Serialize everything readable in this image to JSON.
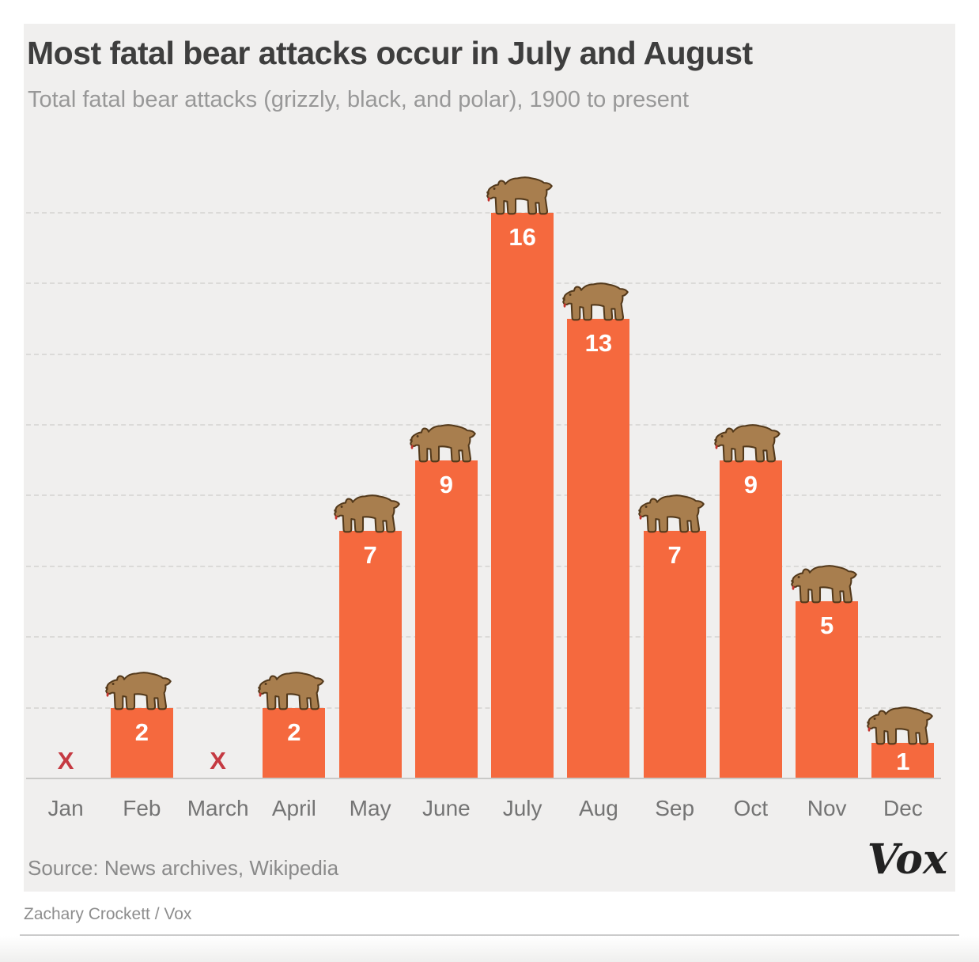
{
  "page": {
    "credit": "Zachary Crockett / Vox",
    "source": "Source: News archives, Wikipedia",
    "logo_text": "Vox"
  },
  "chart_data": {
    "type": "bar",
    "title": "Most fatal bear attacks occur in July and August",
    "subtitle": "Total fatal bear attacks (grizzly, black, and polar), 1900 to present",
    "categories": [
      "Jan",
      "Feb",
      "March",
      "April",
      "May",
      "June",
      "July",
      "Aug",
      "Sep",
      "Oct",
      "Nov",
      "Dec"
    ],
    "values": [
      0,
      2,
      0,
      2,
      7,
      9,
      16,
      13,
      7,
      9,
      5,
      1
    ],
    "zero_display": "X",
    "data_labels": "inside-top-white",
    "bar_icon": "bear-icon",
    "ylim": [
      0,
      17
    ],
    "gridline_step": 2,
    "grid": "horizontal-dashed",
    "legend": "none",
    "xlabel": "",
    "ylabel": ""
  },
  "colors": {
    "page_bg": "#FFFFFF",
    "panel_bg": "#F0EFEE",
    "bar": "#F5693E",
    "bar_label": "#FFFFFF",
    "zero_marker": "#C53A42",
    "title": "#3E3E3E",
    "subtitle": "#989898",
    "month_label": "#747474",
    "axis_line": "#C9C9C7",
    "gridline": "#DBDAD8",
    "source": "#8A8A8A",
    "credit": "#8D8D8D",
    "logo": "#222222",
    "divider": "#CBCBCB",
    "bear_body": "#A87E4E",
    "bear_outline": "#53391B",
    "bear_tongue": "#C4342D"
  }
}
